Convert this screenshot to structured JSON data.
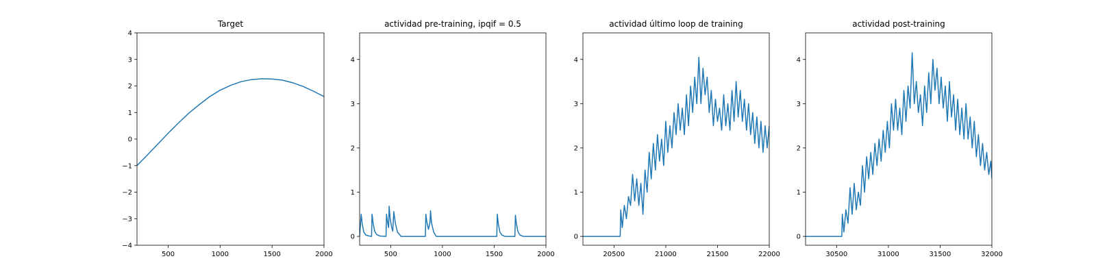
{
  "chart_data": [
    {
      "type": "line",
      "title": "Target",
      "xlim": [
        200,
        2000
      ],
      "ylim": [
        -4,
        4
      ],
      "xticks": [
        500,
        1000,
        1500,
        2000
      ],
      "yticks": [
        -4,
        -3,
        -2,
        -1,
        0,
        1,
        2,
        3,
        4
      ],
      "series": [
        {
          "x": [
            200,
            300,
            400,
            500,
            600,
            700,
            800,
            900,
            1000,
            1100,
            1200,
            1300,
            1400,
            1500,
            1600,
            1700,
            1800,
            1900,
            2000
          ],
          "y": [
            -1.0,
            -0.6,
            -0.19,
            0.22,
            0.61,
            0.98,
            1.3,
            1.6,
            1.84,
            2.02,
            2.16,
            2.24,
            2.27,
            2.26,
            2.22,
            2.12,
            1.98,
            1.8,
            1.6
          ]
        }
      ],
      "line_color": "#1f77b4"
    },
    {
      "type": "line",
      "title": "actividad pre-training, ipqif = 0.5",
      "xlim": [
        200,
        2000
      ],
      "ylim": [
        -0.2,
        4.6
      ],
      "xticks": [
        500,
        1000,
        1500,
        2000
      ],
      "yticks": [
        0,
        1,
        2,
        3,
        4
      ],
      "series": [
        {
          "x": [
            200,
            215,
            225,
            240,
            260,
            290,
            315,
            320,
            330,
            345,
            365,
            395,
            455,
            460,
            470,
            480,
            485,
            495,
            510,
            520,
            530,
            545,
            565,
            600,
            835,
            840,
            850,
            865,
            880,
            885,
            895,
            915,
            940,
            1525,
            1530,
            1540,
            1555,
            1575,
            1605,
            1700,
            1705,
            1715,
            1730,
            1750,
            1780,
            2000
          ],
          "y": [
            0,
            0.5,
            0.28,
            0.1,
            0.03,
            0.01,
            0,
            0.5,
            0.3,
            0.12,
            0.04,
            0.01,
            0,
            0.5,
            0.32,
            0.2,
            0.68,
            0.4,
            0.2,
            0.12,
            0.56,
            0.3,
            0.1,
            0,
            0,
            0.5,
            0.32,
            0.16,
            0.32,
            0.58,
            0.3,
            0.1,
            0,
            0,
            0.5,
            0.28,
            0.1,
            0.03,
            0,
            0,
            0.48,
            0.28,
            0.1,
            0.03,
            0,
            0
          ]
        }
      ],
      "line_color": "#1f77b4"
    },
    {
      "type": "line",
      "title": "actividad último loop de training",
      "xlim": [
        20200,
        22000
      ],
      "ylim": [
        -0.2,
        4.6
      ],
      "xticks": [
        20500,
        21000,
        21500,
        22000
      ],
      "yticks": [
        0,
        1,
        2,
        3,
        4
      ],
      "series": [
        {
          "x": [
            20200,
            20560,
            20565,
            20580,
            20600,
            20620,
            20640,
            20660,
            20680,
            20700,
            20720,
            20740,
            20760,
            20780,
            20800,
            20820,
            20840,
            20860,
            20880,
            20900,
            20920,
            20940,
            20960,
            20980,
            21000,
            21020,
            21040,
            21060,
            21080,
            21100,
            21120,
            21140,
            21160,
            21180,
            21200,
            21220,
            21240,
            21260,
            21280,
            21300,
            21320,
            21340,
            21360,
            21380,
            21400,
            21420,
            21440,
            21460,
            21480,
            21500,
            21520,
            21540,
            21560,
            21580,
            21600,
            21620,
            21640,
            21660,
            21680,
            21700,
            21720,
            21740,
            21760,
            21780,
            21800,
            21820,
            21840,
            21860,
            21880,
            21900,
            21920,
            21940,
            21960,
            21980,
            22000
          ],
          "y": [
            0,
            0,
            0.6,
            0.2,
            0.7,
            0.4,
            0.9,
            0.7,
            1.4,
            0.8,
            1.3,
            0.7,
            1.2,
            0.5,
            1.5,
            1.0,
            1.9,
            1.3,
            2.1,
            1.5,
            2.3,
            1.7,
            2.2,
            1.6,
            2.6,
            1.9,
            2.5,
            2.0,
            2.8,
            2.3,
            3.0,
            2.4,
            2.9,
            2.3,
            3.2,
            2.5,
            3.4,
            2.8,
            3.6,
            3.0,
            4.05,
            3.0,
            3.8,
            3.2,
            3.6,
            2.8,
            3.3,
            2.5,
            3.1,
            2.6,
            2.9,
            2.4,
            3.2,
            2.5,
            3.0,
            2.4,
            3.3,
            2.6,
            3.5,
            2.7,
            3.3,
            2.6,
            3.1,
            2.4,
            3.0,
            2.3,
            2.8,
            2.1,
            2.7,
            2.0,
            2.6,
            1.9,
            2.5,
            2.0,
            2.5
          ]
        }
      ],
      "line_color": "#1f77b4"
    },
    {
      "type": "line",
      "title": "actividad post-training",
      "xlim": [
        30200,
        32000
      ],
      "ylim": [
        -0.2,
        4.6
      ],
      "xticks": [
        30500,
        31000,
        31500,
        32000
      ],
      "yticks": [
        0,
        1,
        2,
        3,
        4
      ],
      "series": [
        {
          "x": [
            30200,
            30550,
            30555,
            30570,
            30590,
            30610,
            30630,
            30650,
            30670,
            30690,
            30710,
            30730,
            30750,
            30770,
            30790,
            30810,
            30830,
            30850,
            30870,
            30890,
            30910,
            30930,
            30950,
            30970,
            30990,
            31010,
            31030,
            31050,
            31070,
            31090,
            31110,
            31130,
            31150,
            31170,
            31190,
            31210,
            31230,
            31250,
            31270,
            31290,
            31310,
            31330,
            31350,
            31370,
            31390,
            31410,
            31430,
            31450,
            31470,
            31490,
            31510,
            31530,
            31550,
            31570,
            31590,
            31610,
            31630,
            31650,
            31670,
            31690,
            31710,
            31730,
            31750,
            31770,
            31790,
            31810,
            31830,
            31850,
            31870,
            31890,
            31910,
            31930,
            31950,
            31970,
            31990,
            32000
          ],
          "y": [
            0,
            0,
            0.5,
            0.1,
            0.6,
            0.3,
            1.1,
            0.5,
            1.2,
            0.6,
            1.0,
            0.7,
            1.6,
            1.0,
            1.8,
            1.3,
            1.9,
            1.4,
            2.1,
            1.6,
            2.2,
            1.7,
            2.4,
            1.9,
            2.6,
            2.0,
            3.0,
            2.4,
            3.1,
            2.4,
            2.9,
            2.3,
            3.3,
            2.6,
            3.4,
            2.9,
            4.15,
            3.0,
            3.5,
            2.8,
            3.2,
            2.5,
            3.4,
            2.8,
            3.7,
            3.0,
            4.0,
            3.3,
            3.8,
            3.0,
            3.6,
            2.9,
            3.4,
            2.6,
            3.5,
            2.7,
            3.2,
            2.4,
            3.1,
            2.3,
            2.9,
            2.2,
            3.0,
            2.2,
            2.7,
            2.0,
            2.6,
            1.8,
            2.3,
            1.6,
            2.1,
            1.5,
            1.9,
            1.4,
            1.7,
            1.3
          ]
        }
      ],
      "line_color": "#1f77b4"
    }
  ]
}
